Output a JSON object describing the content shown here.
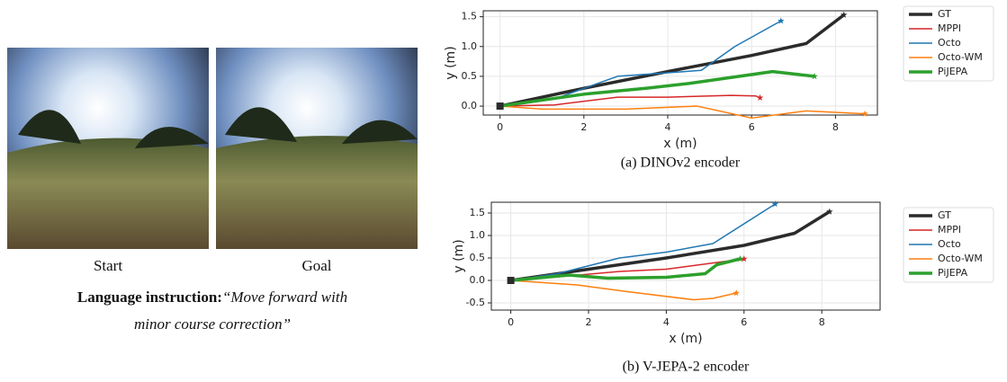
{
  "images": [
    {
      "caption": "Start"
    },
    {
      "caption": "Goal"
    }
  ],
  "instruction": {
    "label": "Language instruction:",
    "line1": "“Move forward with",
    "line2": "minor course correction”"
  },
  "chart_data": [
    {
      "type": "line",
      "caption": "(a) DINOv2 encoder",
      "xlabel": "x (m)",
      "ylabel": "y (m)",
      "xlim": [
        -0.4,
        9.0
      ],
      "ylim": [
        -0.15,
        1.6
      ],
      "xticks": [
        0,
        2,
        4,
        6,
        8
      ],
      "yticks": [
        {
          "value": 0,
          "label": "0.0"
        },
        0.5,
        {
          "value": 1,
          "label": "1.0"
        },
        1.5
      ],
      "grid": true,
      "legend": "outside-right",
      "series": [
        {
          "name": "GT",
          "color": "#2b2b2b",
          "width": 3.5,
          "x": [
            0,
            2,
            4,
            6,
            7.3,
            8.2
          ],
          "values": [
            0,
            0.3,
            0.58,
            0.85,
            1.05,
            1.53
          ]
        },
        {
          "name": "MPPI",
          "color": "#d62728",
          "width": 1.5,
          "x": [
            0,
            1.3,
            2.8,
            4,
            5.5,
            6.1,
            6.2
          ],
          "values": [
            0,
            0.02,
            0.15,
            0.15,
            0.18,
            0.17,
            0.14
          ]
        },
        {
          "name": "Octo",
          "color": "#1f77b4",
          "width": 1.5,
          "x": [
            0,
            1.3,
            2.8,
            4.8,
            5.6,
            6.7
          ],
          "values": [
            0,
            0.12,
            0.5,
            0.6,
            1.0,
            1.43
          ]
        },
        {
          "name": "Octo-WM",
          "color": "#ff7f0e",
          "width": 1.5,
          "x": [
            0,
            1,
            3,
            4.7,
            6,
            7.3,
            8.7
          ],
          "values": [
            0,
            -0.05,
            -0.05,
            0.0,
            -0.2,
            -0.08,
            -0.13
          ]
        },
        {
          "name": "PiJEPA",
          "color": "#2ca02c",
          "width": 3.5,
          "x": [
            0,
            2,
            3.5,
            4.5,
            6.5,
            7.5
          ],
          "values": [
            0,
            0.2,
            0.3,
            0.38,
            0.58,
            0.5
          ]
        }
      ]
    },
    {
      "type": "line",
      "caption": "(b) V-JEPA-2 encoder",
      "xlabel": "x (m)",
      "ylabel": "y (m)",
      "xlim": [
        -0.5,
        9.5
      ],
      "ylim": [
        -0.66,
        1.74
      ],
      "xticks": [
        0,
        2,
        4,
        6,
        8
      ],
      "yticks": [
        -0.5,
        {
          "value": 0,
          "label": "0.0"
        },
        0.5,
        {
          "value": 1,
          "label": "1.0"
        },
        1.5
      ],
      "grid": true,
      "legend": "outside-right",
      "series": [
        {
          "name": "GT",
          "color": "#2b2b2b",
          "width": 3.5,
          "x": [
            0,
            2,
            4,
            6,
            7.3,
            8.2
          ],
          "values": [
            0,
            0.25,
            0.5,
            0.78,
            1.05,
            1.53
          ]
        },
        {
          "name": "MPPI",
          "color": "#d62728",
          "width": 1.5,
          "x": [
            0,
            1.5,
            2.8,
            4,
            6.0
          ],
          "values": [
            0,
            0.1,
            0.2,
            0.25,
            0.48
          ]
        },
        {
          "name": "Octo",
          "color": "#1f77b4",
          "width": 1.5,
          "x": [
            0,
            1.2,
            2.8,
            4,
            5.2,
            6.8
          ],
          "values": [
            0,
            0.15,
            0.5,
            0.63,
            0.82,
            1.7
          ]
        },
        {
          "name": "Octo-WM",
          "color": "#ff7f0e",
          "width": 1.5,
          "x": [
            0,
            1.7,
            3,
            4.7,
            5.2,
            5.8
          ],
          "values": [
            0,
            -0.1,
            -0.25,
            -0.43,
            -0.4,
            -0.28
          ]
        },
        {
          "name": "PiJEPA",
          "color": "#2ca02c",
          "width": 3.5,
          "x": [
            0,
            1.5,
            2.5,
            4,
            5,
            5.3,
            5.9
          ],
          "values": [
            0,
            0.12,
            0.05,
            0.07,
            0.15,
            0.35,
            0.48
          ]
        }
      ]
    }
  ]
}
